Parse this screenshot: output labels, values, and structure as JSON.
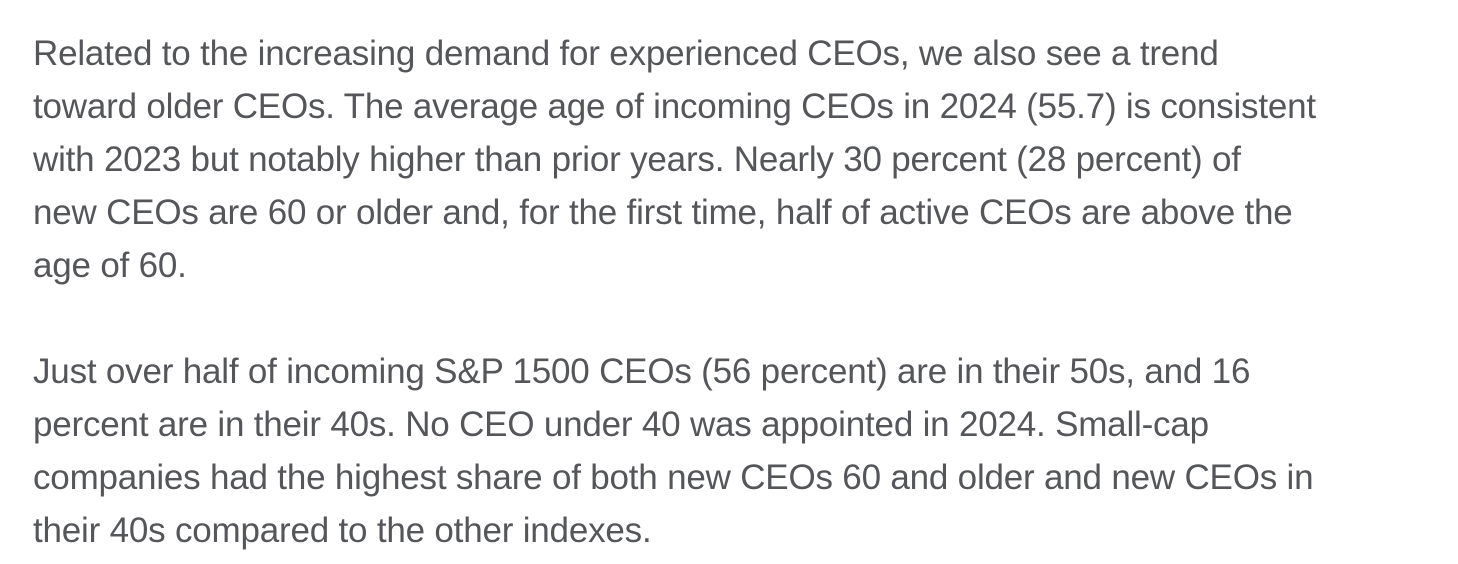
{
  "page": {
    "background_color": "#ffffff",
    "text_color": "#54565a"
  },
  "document": {
    "paragraphs": [
      {
        "lines": [
          "Related to the increasing demand for experienced CEOs, we also see a trend",
          "toward older CEOs. The average age of incoming CEOs in 2024 (55.7) is consistent",
          "with 2023 but notably higher than prior years. Nearly 30 percent (28 percent) of",
          "new CEOs are 60 or older and, for the first time, half of active CEOs are above the",
          "age of 60."
        ]
      },
      {
        "lines": [
          "Just over half of incoming S&P 1500 CEOs (56 percent) are in their 50s, and 16",
          "percent are in their 40s. No CEO under 40 was appointed in 2024. Small-cap",
          "companies had the highest share of both new CEOs 60 and older and new CEOs in",
          "their 40s compared to the other indexes."
        ]
      }
    ]
  }
}
